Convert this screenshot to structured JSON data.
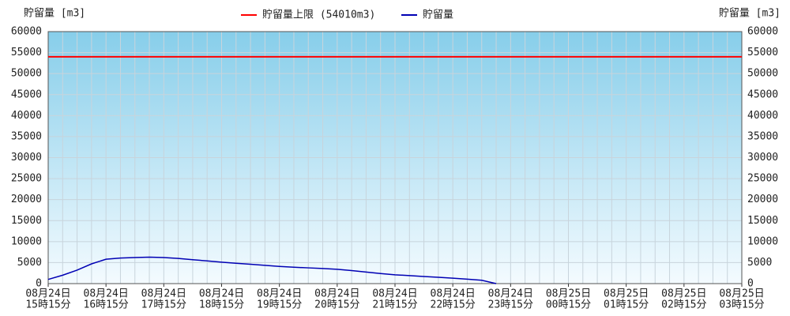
{
  "chart_data": {
    "type": "line",
    "y_axis_label": "貯留量 [m3]",
    "y2_axis_label": "貯留量 [m3]",
    "categories": [
      [
        "08月24日",
        "15時15分"
      ],
      null,
      null,
      null,
      [
        "08月24日",
        "16時15分"
      ],
      null,
      null,
      null,
      [
        "08月24日",
        "17時15分"
      ],
      null,
      null,
      null,
      [
        "08月24日",
        "18時15分"
      ],
      null,
      null,
      null,
      [
        "08月24日",
        "19時15分"
      ],
      null,
      null,
      null,
      [
        "08月24日",
        "20時15分"
      ],
      null,
      null,
      null,
      [
        "08月24日",
        "21時15分"
      ],
      null,
      null,
      null,
      [
        "08月24日",
        "22時15分"
      ],
      null,
      null,
      null,
      [
        "08月24日",
        "23時15分"
      ],
      null,
      null,
      null,
      [
        "08月25日",
        "00時15分"
      ],
      null,
      null,
      null,
      [
        "08月25日",
        "01時15分"
      ],
      null,
      null,
      null,
      [
        "08月25日",
        "02時15分"
      ],
      null,
      null,
      null,
      [
        "08月25日",
        "03時15分"
      ]
    ],
    "limit": {
      "name": "貯留量上限 (54010m3)",
      "value": 54010,
      "color": "#ff0000"
    },
    "series": [
      {
        "name": "貯留量",
        "color": "#0000b4",
        "values": [
          1000,
          2000,
          3200,
          4700,
          5800,
          6100,
          6200,
          6300,
          6200,
          6000,
          5700,
          5400,
          5100,
          4850,
          4600,
          4350,
          4100,
          3900,
          3750,
          3600,
          3400,
          3100,
          2750,
          2400,
          2100,
          1900,
          1700,
          1500,
          1300,
          1050,
          800,
          0,
          null,
          null,
          null,
          null,
          null,
          null,
          null,
          null,
          null,
          null,
          null,
          null,
          null,
          null,
          null,
          null,
          null
        ]
      }
    ],
    "ylim": [
      0,
      60000
    ],
    "yticks": [
      0,
      5000,
      10000,
      15000,
      20000,
      25000,
      30000,
      35000,
      40000,
      45000,
      50000,
      55000,
      60000
    ],
    "y2lim": [
      0,
      60000
    ],
    "y2ticks": [
      0,
      5000,
      10000,
      15000,
      20000,
      25000,
      30000,
      35000,
      40000,
      45000,
      50000,
      55000,
      60000
    ],
    "grid": true
  }
}
